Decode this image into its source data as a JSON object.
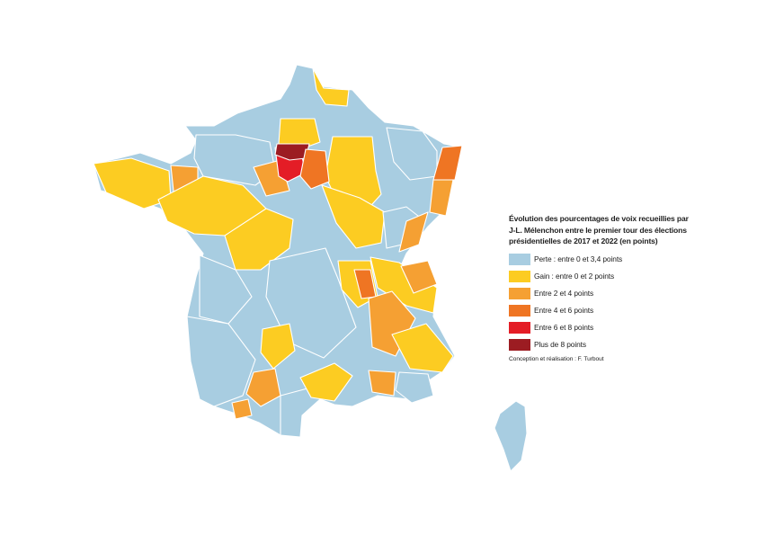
{
  "legend": {
    "title_lines": [
      "Évolution des pourcentages de voix recueillies par",
      "J-L. Mélenchon entre le premier tour des élections",
      "présidentielles de 2017 et 2022 (en points)"
    ],
    "items": [
      {
        "key": "perte",
        "label": "Perte : entre 0 et 3,4 points",
        "color": "#a8cde1"
      },
      {
        "key": "gain02",
        "label": "Gain : entre 0 et 2 points",
        "color": "#fccc22"
      },
      {
        "key": "g24",
        "label": "Entre 2 et 4 points",
        "color": "#f5a033"
      },
      {
        "key": "g46",
        "label": "Entre 4 et 6 points",
        "color": "#ef7523"
      },
      {
        "key": "g68",
        "label": "Entre 6 et 8 points",
        "color": "#e41d26"
      },
      {
        "key": "g8p",
        "label": "Plus de 8 points",
        "color": "#9c1c22"
      }
    ],
    "credit": "Conception et réalisation : F. Turbout"
  },
  "map_regions": [
    {
      "name": "hauts-de-france",
      "class": "perte"
    },
    {
      "name": "nord-gain",
      "class": "gain02"
    },
    {
      "name": "normandie",
      "class": "perte"
    },
    {
      "name": "picardie-south",
      "class": "gain02"
    },
    {
      "name": "lorraine",
      "class": "perte"
    },
    {
      "name": "champagne",
      "class": "gain02"
    },
    {
      "name": "alsace",
      "class": "g46"
    },
    {
      "name": "haut-rhin",
      "class": "g24"
    },
    {
      "name": "bretagne",
      "class": "gain02"
    },
    {
      "name": "ille-et-vilaine",
      "class": "g24"
    },
    {
      "name": "pays-de-la-loire",
      "class": "gain02"
    },
    {
      "name": "centre",
      "class": "gain02"
    },
    {
      "name": "burgundy",
      "class": "gain02"
    },
    {
      "name": "franche-comte",
      "class": "perte"
    },
    {
      "name": "doubs",
      "class": "g24"
    },
    {
      "name": "eure-et-loir",
      "class": "g24"
    },
    {
      "name": "yvelines-essonne",
      "class": "g68"
    },
    {
      "name": "val-doise",
      "class": "g8p"
    },
    {
      "name": "seine-et-marne",
      "class": "g46"
    },
    {
      "name": "west-center",
      "class": "perte"
    },
    {
      "name": "massif-central",
      "class": "perte"
    },
    {
      "name": "allier-puy",
      "class": "gain02"
    },
    {
      "name": "rhone",
      "class": "g46"
    },
    {
      "name": "ain-savoie",
      "class": "gain02"
    },
    {
      "name": "haute-savoie",
      "class": "g24"
    },
    {
      "name": "isere-drome",
      "class": "g24"
    },
    {
      "name": "southwest",
      "class": "perte"
    },
    {
      "name": "lot-garonne",
      "class": "gain02"
    },
    {
      "name": "haute-garonne",
      "class": "g24"
    },
    {
      "name": "pyrenees-atlantiques",
      "class": "g24"
    },
    {
      "name": "occitanie-east",
      "class": "perte"
    },
    {
      "name": "herault-gard",
      "class": "gain02"
    },
    {
      "name": "provence",
      "class": "gain02"
    },
    {
      "name": "var",
      "class": "perte"
    },
    {
      "name": "bouches-du-rhone",
      "class": "g24"
    },
    {
      "name": "corse",
      "class": "perte"
    }
  ]
}
